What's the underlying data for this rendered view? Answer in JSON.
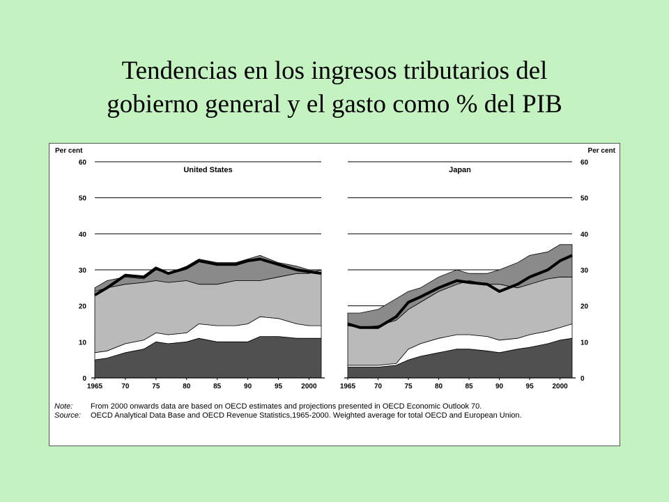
{
  "title": {
    "line1": "Tendencias en los ingresos tributarios del",
    "line2": "gobierno general y el gasto como % del PIB"
  },
  "figure": {
    "unit_left": "Per cent",
    "unit_right": "Per cent",
    "note_label": "Note:",
    "note_text": "From 2000 onwards data are based on OECD estimates and projections presented in OECD Economic Outlook 70.",
    "source_label": "Source:",
    "source_text": "OECD Analytical Data Base and OECD Revenue Statistics,1965-2000. Weighted average for total OECD and European Union."
  },
  "chart_data": [
    {
      "type": "area",
      "title": "United States",
      "x": [
        1965,
        1967,
        1970,
        1973,
        1975,
        1977,
        1980,
        1982,
        1985,
        1988,
        1990,
        1992,
        1995,
        1998,
        2000,
        2002
      ],
      "x_ticks": [
        "1965",
        "70",
        "75",
        "80",
        "85",
        "90",
        "95",
        "2000"
      ],
      "y_ticks": [
        "0",
        "10",
        "20",
        "30",
        "40",
        "50",
        "60"
      ],
      "ylim": [
        0,
        60
      ],
      "series": [
        {
          "values": [
            5,
            5.5,
            7,
            8,
            10,
            9.5,
            10,
            11,
            10,
            10,
            10,
            11.5,
            11.5,
            11,
            11,
            11
          ]
        },
        {
          "values": [
            7,
            7.5,
            9.5,
            10.5,
            12.5,
            12,
            12.5,
            15,
            14.5,
            14.5,
            15,
            17,
            16.5,
            15,
            14.5,
            14.5
          ]
        },
        {
          "values": [
            24,
            25,
            26,
            26.5,
            27,
            26.5,
            27,
            26,
            26,
            27,
            27,
            27,
            28,
            29,
            29,
            30
          ]
        },
        {
          "values": [
            25,
            27,
            28,
            27.5,
            30,
            29,
            31,
            33,
            32,
            32,
            33,
            34,
            32,
            31,
            30,
            30
          ]
        },
        {
          "values": [
            23,
            25,
            28.5,
            28,
            30.5,
            29,
            30.5,
            32.5,
            31.5,
            31.5,
            32.5,
            33,
            31.5,
            30,
            29.5,
            29
          ]
        }
      ]
    },
    {
      "type": "area",
      "title": "Japan",
      "x": [
        1965,
        1967,
        1970,
        1973,
        1975,
        1977,
        1980,
        1983,
        1985,
        1988,
        1990,
        1993,
        1995,
        1998,
        2000,
        2002
      ],
      "x_ticks": [
        "1965",
        "70",
        "75",
        "80",
        "85",
        "90",
        "95",
        "2000"
      ],
      "y_ticks": [
        "0",
        "10",
        "20",
        "30",
        "40",
        "50",
        "60"
      ],
      "ylim": [
        0,
        60
      ],
      "series": [
        {
          "values": [
            3,
            3,
            3,
            3.5,
            5,
            6,
            7,
            8,
            8,
            7.5,
            7,
            8,
            8.5,
            9.5,
            10.5,
            11
          ]
        },
        {
          "values": [
            3.5,
            3.5,
            3.5,
            4,
            8,
            9.5,
            11,
            12,
            12,
            11.5,
            10.5,
            11,
            12,
            13,
            14,
            15
          ]
        },
        {
          "values": [
            14.5,
            14,
            14.5,
            16,
            19,
            21,
            24,
            26,
            27,
            26,
            26,
            25,
            26,
            27.5,
            28,
            28
          ]
        },
        {
          "values": [
            18,
            18,
            19,
            22,
            24,
            25,
            28,
            30,
            29,
            29,
            30,
            32,
            34,
            35,
            37,
            37
          ]
        },
        {
          "values": [
            15,
            14,
            14,
            17,
            21,
            22.5,
            25,
            27,
            26.5,
            26,
            24,
            26,
            28,
            30,
            32.5,
            34
          ]
        }
      ]
    }
  ]
}
